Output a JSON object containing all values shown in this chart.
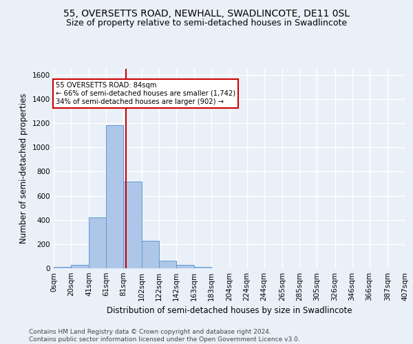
{
  "title": "55, OVERSETTS ROAD, NEWHALL, SWADLINCOTE, DE11 0SL",
  "subtitle": "Size of property relative to semi-detached houses in Swadlincote",
  "xlabel": "Distribution of semi-detached houses by size in Swadlincote",
  "ylabel": "Number of semi-detached properties",
  "footer_line1": "Contains HM Land Registry data © Crown copyright and database right 2024.",
  "footer_line2": "Contains public sector information licensed under the Open Government Licence v3.0.",
  "bin_edges": [
    0,
    20,
    41,
    61,
    81,
    102,
    122,
    142,
    163,
    183,
    204,
    224,
    244,
    265,
    285,
    305,
    326,
    346,
    366,
    387,
    407
  ],
  "bin_labels": [
    "0sqm",
    "20sqm",
    "41sqm",
    "61sqm",
    "81sqm",
    "102sqm",
    "122sqm",
    "142sqm",
    "163sqm",
    "183sqm",
    "204sqm",
    "224sqm",
    "244sqm",
    "265sqm",
    "285sqm",
    "305sqm",
    "326sqm",
    "346sqm",
    "366sqm",
    "387sqm",
    "407sqm"
  ],
  "counts": [
    10,
    30,
    420,
    1185,
    715,
    230,
    60,
    30,
    12,
    0,
    0,
    0,
    0,
    0,
    0,
    0,
    0,
    0,
    0,
    0
  ],
  "bar_color": "#aec6e8",
  "bar_edge_color": "#5b9bd5",
  "property_size_sqm": 84,
  "vline_color": "#cc0000",
  "annotation_text": "55 OVERSETTS ROAD: 84sqm\n← 66% of semi-detached houses are smaller (1,742)\n34% of semi-detached houses are larger (902) →",
  "annotation_box_color": "#ffffff",
  "annotation_box_edge_color": "#cc0000",
  "ylim": [
    0,
    1650
  ],
  "yticks": [
    0,
    200,
    400,
    600,
    800,
    1000,
    1200,
    1400,
    1600
  ],
  "background_color": "#eaf0f8",
  "grid_color": "#ffffff",
  "title_fontsize": 10,
  "subtitle_fontsize": 9,
  "axis_label_fontsize": 8.5,
  "tick_fontsize": 7.5,
  "footer_fontsize": 6.5
}
